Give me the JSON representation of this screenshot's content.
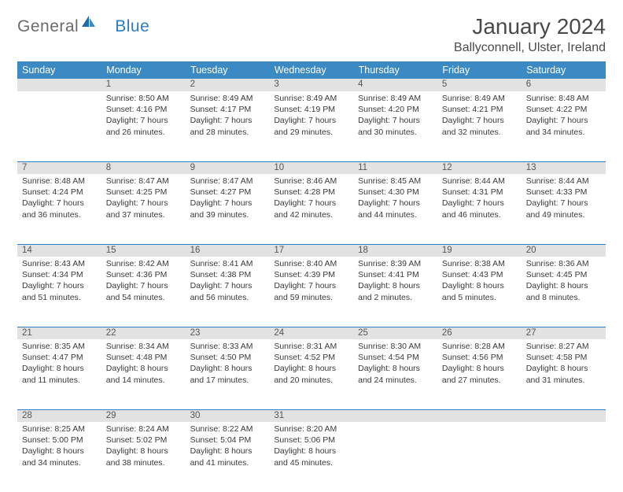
{
  "brand": {
    "name_a": "General",
    "name_b": "Blue"
  },
  "title": "January 2024",
  "location": "Ballyconnell, Ulster, Ireland",
  "colors": {
    "header_bg": "#3b8ac4",
    "daynum_bg": "#e2e2e2",
    "rule": "#2b7dc4",
    "text": "#3a3a3a",
    "title_text": "#4a4a4a"
  },
  "day_names": [
    "Sunday",
    "Monday",
    "Tuesday",
    "Wednesday",
    "Thursday",
    "Friday",
    "Saturday"
  ],
  "weeks": [
    {
      "nums": [
        "",
        "1",
        "2",
        "3",
        "4",
        "5",
        "6"
      ],
      "cells": [
        null,
        {
          "sunrise": "8:50 AM",
          "sunset": "4:16 PM",
          "daylight": "7 hours and 26 minutes."
        },
        {
          "sunrise": "8:49 AM",
          "sunset": "4:17 PM",
          "daylight": "7 hours and 28 minutes."
        },
        {
          "sunrise": "8:49 AM",
          "sunset": "4:19 PM",
          "daylight": "7 hours and 29 minutes."
        },
        {
          "sunrise": "8:49 AM",
          "sunset": "4:20 PM",
          "daylight": "7 hours and 30 minutes."
        },
        {
          "sunrise": "8:49 AM",
          "sunset": "4:21 PM",
          "daylight": "7 hours and 32 minutes."
        },
        {
          "sunrise": "8:48 AM",
          "sunset": "4:22 PM",
          "daylight": "7 hours and 34 minutes."
        }
      ]
    },
    {
      "nums": [
        "7",
        "8",
        "9",
        "10",
        "11",
        "12",
        "13"
      ],
      "cells": [
        {
          "sunrise": "8:48 AM",
          "sunset": "4:24 PM",
          "daylight": "7 hours and 36 minutes."
        },
        {
          "sunrise": "8:47 AM",
          "sunset": "4:25 PM",
          "daylight": "7 hours and 37 minutes."
        },
        {
          "sunrise": "8:47 AM",
          "sunset": "4:27 PM",
          "daylight": "7 hours and 39 minutes."
        },
        {
          "sunrise": "8:46 AM",
          "sunset": "4:28 PM",
          "daylight": "7 hours and 42 minutes."
        },
        {
          "sunrise": "8:45 AM",
          "sunset": "4:30 PM",
          "daylight": "7 hours and 44 minutes."
        },
        {
          "sunrise": "8:44 AM",
          "sunset": "4:31 PM",
          "daylight": "7 hours and 46 minutes."
        },
        {
          "sunrise": "8:44 AM",
          "sunset": "4:33 PM",
          "daylight": "7 hours and 49 minutes."
        }
      ]
    },
    {
      "nums": [
        "14",
        "15",
        "16",
        "17",
        "18",
        "19",
        "20"
      ],
      "cells": [
        {
          "sunrise": "8:43 AM",
          "sunset": "4:34 PM",
          "daylight": "7 hours and 51 minutes."
        },
        {
          "sunrise": "8:42 AM",
          "sunset": "4:36 PM",
          "daylight": "7 hours and 54 minutes."
        },
        {
          "sunrise": "8:41 AM",
          "sunset": "4:38 PM",
          "daylight": "7 hours and 56 minutes."
        },
        {
          "sunrise": "8:40 AM",
          "sunset": "4:39 PM",
          "daylight": "7 hours and 59 minutes."
        },
        {
          "sunrise": "8:39 AM",
          "sunset": "4:41 PM",
          "daylight": "8 hours and 2 minutes."
        },
        {
          "sunrise": "8:38 AM",
          "sunset": "4:43 PM",
          "daylight": "8 hours and 5 minutes."
        },
        {
          "sunrise": "8:36 AM",
          "sunset": "4:45 PM",
          "daylight": "8 hours and 8 minutes."
        }
      ]
    },
    {
      "nums": [
        "21",
        "22",
        "23",
        "24",
        "25",
        "26",
        "27"
      ],
      "cells": [
        {
          "sunrise": "8:35 AM",
          "sunset": "4:47 PM",
          "daylight": "8 hours and 11 minutes."
        },
        {
          "sunrise": "8:34 AM",
          "sunset": "4:48 PM",
          "daylight": "8 hours and 14 minutes."
        },
        {
          "sunrise": "8:33 AM",
          "sunset": "4:50 PM",
          "daylight": "8 hours and 17 minutes."
        },
        {
          "sunrise": "8:31 AM",
          "sunset": "4:52 PM",
          "daylight": "8 hours and 20 minutes."
        },
        {
          "sunrise": "8:30 AM",
          "sunset": "4:54 PM",
          "daylight": "8 hours and 24 minutes."
        },
        {
          "sunrise": "8:28 AM",
          "sunset": "4:56 PM",
          "daylight": "8 hours and 27 minutes."
        },
        {
          "sunrise": "8:27 AM",
          "sunset": "4:58 PM",
          "daylight": "8 hours and 31 minutes."
        }
      ]
    },
    {
      "nums": [
        "28",
        "29",
        "30",
        "31",
        "",
        "",
        ""
      ],
      "cells": [
        {
          "sunrise": "8:25 AM",
          "sunset": "5:00 PM",
          "daylight": "8 hours and 34 minutes."
        },
        {
          "sunrise": "8:24 AM",
          "sunset": "5:02 PM",
          "daylight": "8 hours and 38 minutes."
        },
        {
          "sunrise": "8:22 AM",
          "sunset": "5:04 PM",
          "daylight": "8 hours and 41 minutes."
        },
        {
          "sunrise": "8:20 AM",
          "sunset": "5:06 PM",
          "daylight": "8 hours and 45 minutes."
        },
        null,
        null,
        null
      ]
    }
  ],
  "labels": {
    "sunrise": "Sunrise:",
    "sunset": "Sunset:",
    "daylight": "Daylight:"
  }
}
